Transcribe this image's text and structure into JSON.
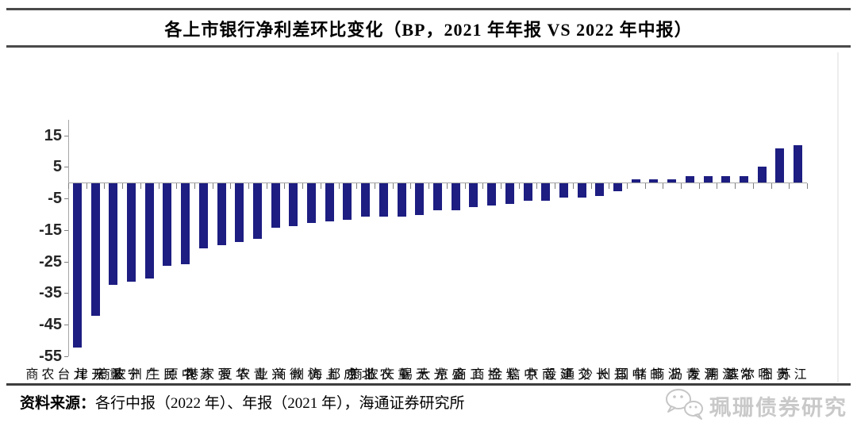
{
  "title": "各上市银行净利差环比变化（BP，2021 年年报 VS 2022 年中报）",
  "footer": {
    "source_label": "资料来源：",
    "source_text": "各行中报（2022 年）、年报（2021 年），海通证券研究所"
  },
  "watermark": {
    "icon": "wechat-icon",
    "text": "珮珊债券研究"
  },
  "chart_data": {
    "type": "bar",
    "title": "各上市银行净利差环比变化（BP，2021 年年报 VS 2022 年中报）",
    "unit": "BP",
    "categories": [
      "九台农商",
      "天津",
      "重庆",
      "宁波",
      "广州农商",
      "民生",
      "中原",
      "苏农",
      "张家港",
      "华夏",
      "青农",
      "兴业",
      "徽商",
      "杭州",
      "上海",
      "成都",
      "北京",
      "农业",
      "重庆农商",
      "无锡",
      "光大",
      "盛京",
      "工商",
      "招商",
      "紫金",
      "中信",
      "南京",
      "建设",
      "交通",
      "长沙",
      "郑州",
      "中国",
      "邮储",
      "浙商",
      "青岛",
      "浦发",
      "江阴",
      "常熟",
      "哈尔滨",
      "贵阳",
      "江苏"
    ],
    "values": [
      -52,
      -42,
      -32,
      -31,
      -30,
      -26,
      -25.5,
      -20.5,
      -19.5,
      -18.5,
      -17.5,
      -14,
      -13.5,
      -12.5,
      -12,
      -11.5,
      -10.5,
      -10.5,
      -10.5,
      -10,
      -8.5,
      -8.5,
      -7.5,
      -7,
      -6.5,
      -5.5,
      -5.5,
      -4.5,
      -4.5,
      -4,
      -2.5,
      1,
      1,
      1,
      2,
      2,
      2,
      2,
      5,
      11,
      12
    ],
    "xlabel": "",
    "ylabel": "",
    "ylim": [
      -55,
      20
    ],
    "yticks": [
      15,
      5,
      -5,
      -15,
      -25,
      -35,
      -45,
      -55
    ],
    "grid": false,
    "legend": "none",
    "bar_color": "#1d1d82",
    "axis_color": "#a6a6a6"
  }
}
